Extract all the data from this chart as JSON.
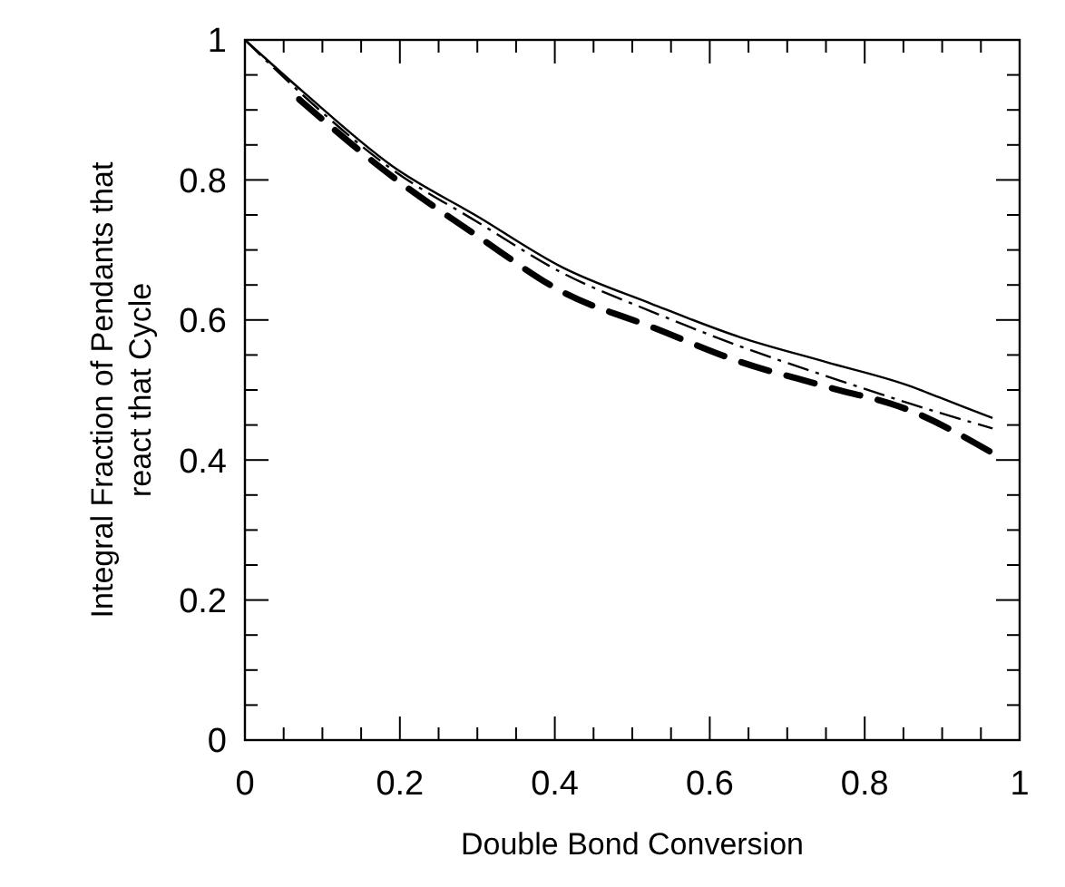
{
  "chart_data": {
    "type": "line",
    "xlabel": "Double Bond Conversion",
    "ylabel": "Integral Fraction of Pendants that react that Cycle",
    "xlim": [
      0,
      1
    ],
    "ylim": [
      0,
      1
    ],
    "xticks": [
      0,
      {
        "value": 0.05,
        "label": null
      },
      {
        "value": 0.1,
        "label": null
      },
      {
        "value": 0.15,
        "label": null
      },
      0.2,
      {
        "value": 0.25,
        "label": null
      },
      {
        "value": 0.3,
        "label": null
      },
      {
        "value": 0.35,
        "label": null
      },
      0.4,
      {
        "value": 0.45,
        "label": null
      },
      {
        "value": 0.5,
        "label": null
      },
      {
        "value": 0.55,
        "label": null
      },
      0.6,
      {
        "value": 0.65,
        "label": null
      },
      {
        "value": 0.7,
        "label": null
      },
      {
        "value": 0.75,
        "label": null
      },
      0.8,
      {
        "value": 0.85,
        "label": null
      },
      {
        "value": 0.9,
        "label": null
      },
      {
        "value": 0.95,
        "label": null
      },
      1
    ],
    "yticks": [
      0,
      {
        "value": 0.05,
        "label": null
      },
      {
        "value": 0.1,
        "label": null
      },
      {
        "value": 0.15,
        "label": null
      },
      0.2,
      {
        "value": 0.25,
        "label": null
      },
      {
        "value": 0.3,
        "label": null
      },
      {
        "value": 0.35,
        "label": null
      },
      0.4,
      {
        "value": 0.45,
        "label": null
      },
      {
        "value": 0.5,
        "label": null
      },
      {
        "value": 0.55,
        "label": null
      },
      0.6,
      {
        "value": 0.65,
        "label": null
      },
      {
        "value": 0.7,
        "label": null
      },
      {
        "value": 0.75,
        "label": null
      },
      0.8,
      {
        "value": 0.85,
        "label": null
      },
      {
        "value": 0.9,
        "label": null
      },
      {
        "value": 0.95,
        "label": null
      },
      1
    ],
    "grid": false,
    "series": [
      {
        "color": "#000000",
        "line_style": "solid",
        "x": [
          0,
          0.076,
          0.19,
          0.3,
          0.41,
          0.525,
          0.64,
          0.75,
          0.86,
          0.895,
          0.965
        ],
        "values": [
          1,
          0.925,
          0.82,
          0.748,
          0.675,
          0.623,
          0.575,
          0.54,
          0.505,
          0.49,
          0.46
        ]
      },
      {
        "color": "#000000",
        "line_style": "dashed",
        "x": [
          0,
          0.076,
          0.19,
          0.3,
          0.41,
          0.525,
          0.64,
          0.75,
          0.86,
          0.965
        ],
        "values": [
          1,
          0.92,
          0.815,
          0.74,
          0.667,
          0.612,
          0.562,
          0.52,
          0.48,
          0.445
        ]
      },
      {
        "color": "#000000",
        "line_style": "dashed",
        "x": [
          0.07,
          0.19,
          0.3,
          0.41,
          0.525,
          0.64,
          0.75,
          0.86,
          0.965
        ],
        "values": [
          0.915,
          0.805,
          0.72,
          0.64,
          0.59,
          0.54,
          0.505,
          0.47,
          0.41
        ]
      }
    ]
  }
}
